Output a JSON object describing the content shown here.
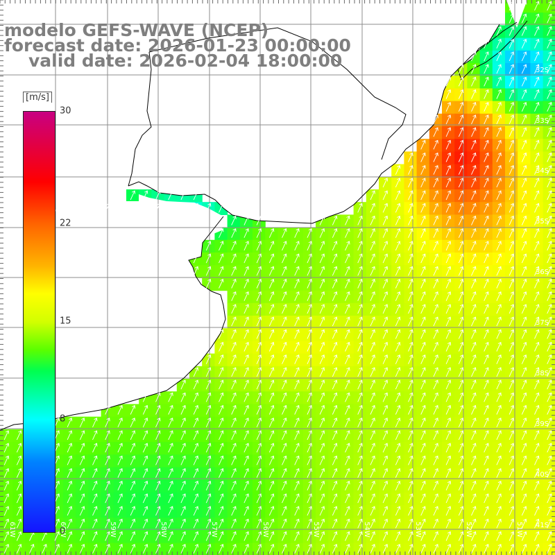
{
  "title": {
    "line1": "modelo GEFS-WAVE (NCEP)",
    "line2": "forecast date: 2026-01-23 00:00:00",
    "line3": "valid date: 2026-02-04 18:00:00"
  },
  "legend": {
    "unit": "[m/s]",
    "ticks": [
      {
        "label": "30",
        "value": 30
      },
      {
        "label": "22",
        "value": 22
      },
      {
        "label": "15",
        "value": 15
      },
      {
        "label": "8",
        "value": 8
      },
      {
        "label": "0",
        "value": 0
      }
    ],
    "min": 0,
    "max": 30
  },
  "colors": {
    "land": "#ffffff",
    "grid": "#8c8c8c",
    "coast": "#000000",
    "arrow": "#ffffff",
    "title": "#7f7f7f"
  },
  "map": {
    "lon_labels": [
      "61W",
      "60W",
      "59W",
      "58W",
      "57W",
      "56W",
      "55W",
      "54W",
      "53W",
      "52W",
      "51W"
    ],
    "lat_labels": [
      "32S",
      "33S",
      "34S",
      "35S",
      "36S",
      "37S",
      "38S",
      "39S",
      "40S",
      "41S"
    ],
    "variable": "wind speed",
    "arrow_direction": "north-northeast"
  }
}
